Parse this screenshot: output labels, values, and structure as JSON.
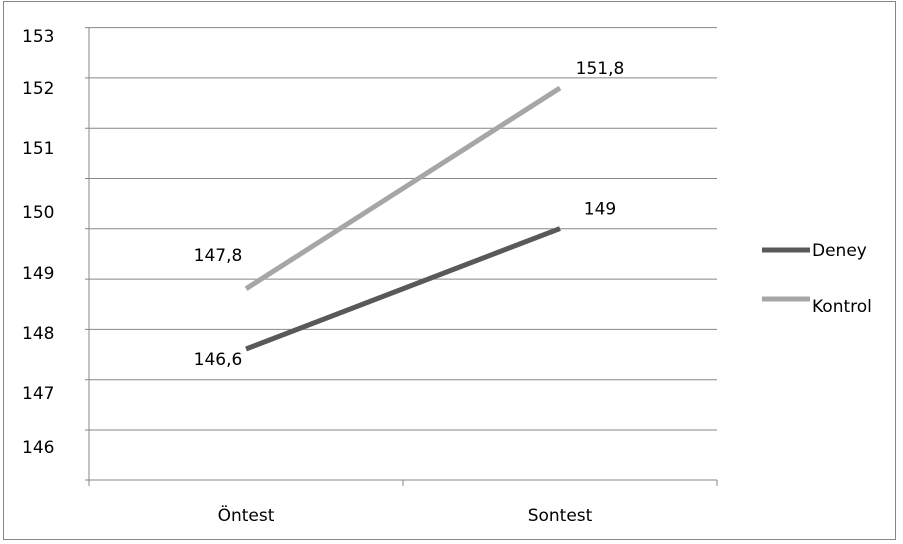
{
  "chart_data": {
    "type": "line",
    "categories": [
      "Öntest",
      "Sontest"
    ],
    "series": [
      {
        "name": "Deney",
        "values": [
          146.6,
          149
        ],
        "labels": [
          "146,6",
          "149"
        ],
        "color": "#595959"
      },
      {
        "name": "Kontrol",
        "values": [
          147.8,
          151.8
        ],
        "labels": [
          "147,8",
          "151,8"
        ],
        "color": "#a6a6a6"
      }
    ],
    "ylim": [
      146,
      153
    ],
    "y_tick_labels": [
      "146",
      "147",
      "148",
      "149",
      "150",
      "151",
      "152",
      "153"
    ],
    "grid": true,
    "legend_position": "right"
  }
}
